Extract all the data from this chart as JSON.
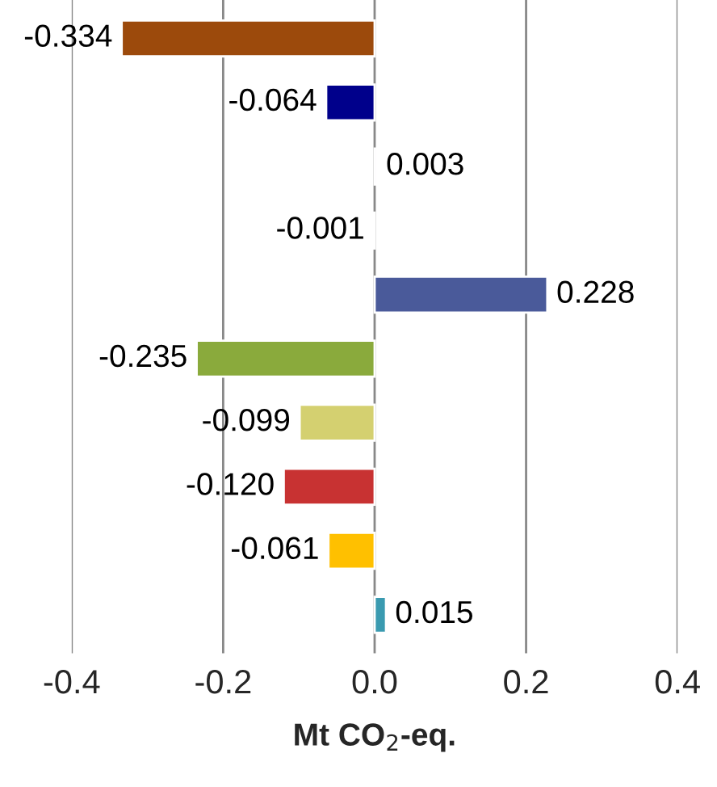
{
  "chart_data": {
    "type": "bar",
    "orientation": "horizontal",
    "xlabel": "Mt CO$_{2}$-eq.",
    "categories": [
      null,
      null,
      null,
      null,
      null,
      null,
      null,
      null,
      null,
      null
    ],
    "values": [
      -0.334,
      -0.064,
      0.003,
      -0.001,
      0.228,
      -0.235,
      -0.099,
      -0.12,
      -0.061,
      0.015
    ],
    "value_labels": [
      "-0.334",
      "-0.064",
      "0.003",
      "-0.001",
      "0.228",
      "-0.235",
      "-0.099",
      "-0.120",
      "-0.061",
      "0.015"
    ],
    "colors": [
      "#9c4a0c",
      "#00008b",
      "#c8b4e6",
      "#4aa3e0",
      "#4a5a9a",
      "#8aaa3c",
      "#d4d070",
      "#c83232",
      "#ffc000",
      "#3a9ab0"
    ],
    "xlim": [
      -0.4,
      0.4
    ],
    "xticks": [
      {
        "value": -0.4,
        "label": "-0.4"
      },
      {
        "value": -0.2,
        "label": "-0.2"
      },
      {
        "value": 0.0,
        "label": "0.0"
      },
      {
        "value": 0.2,
        "label": "0.2"
      },
      {
        "value": 0.4,
        "label": "0.4"
      }
    ],
    "grid": "x"
  }
}
